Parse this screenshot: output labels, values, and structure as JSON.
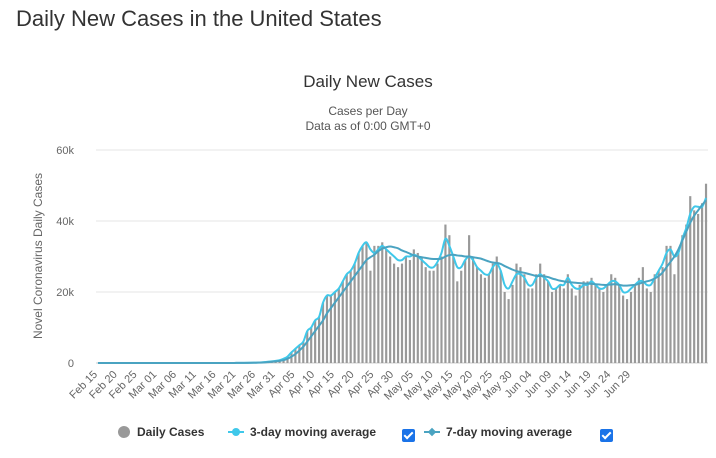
{
  "page": {
    "title": "Daily New Cases in the United States"
  },
  "chart_data": {
    "type": "bar",
    "title": "Daily New Cases",
    "subtitle_lines": [
      "Cases per Day",
      "Data as of 0:00 GMT+0"
    ],
    "ylabel": "Novel Coronavirus Daily Cases",
    "ylim": [
      0,
      60000
    ],
    "y_ticks": [
      0,
      20000,
      40000,
      60000
    ],
    "y_tick_labels": [
      "0",
      "20k",
      "40k",
      "60k"
    ],
    "x_tick_labels": [
      "Feb 15",
      "Feb 20",
      "Feb 25",
      "Mar 01",
      "Mar 06",
      "Mar 11",
      "Mar 16",
      "Mar 21",
      "Mar 26",
      "Mar 31",
      "Apr 05",
      "Apr 10",
      "Apr 15",
      "Apr 20",
      "Apr 25",
      "Apr 30",
      "May 05",
      "May 10",
      "May 15",
      "May 20",
      "May 25",
      "May 30",
      "Jun 04",
      "Jun 09",
      "Jun 14",
      "Jun 19",
      "Jun 24",
      "Jun 29"
    ],
    "x_tick_interval_days": 5,
    "series": [
      {
        "name": "Daily Cases",
        "type": "bar",
        "color": "#999999",
        "values": [
          0,
          0,
          0,
          0,
          0,
          0,
          0,
          0,
          0,
          0,
          0,
          0,
          0,
          0,
          0,
          0,
          0,
          0,
          0,
          0,
          0,
          0,
          0,
          0,
          0,
          0,
          0,
          0,
          0,
          0,
          0,
          0,
          0,
          0,
          10,
          20,
          30,
          50,
          60,
          80,
          110,
          150,
          240,
          350,
          470,
          610,
          800,
          1200,
          1800,
          3000,
          4000,
          5000,
          6000,
          9000,
          10000,
          12000,
          13000,
          17000,
          19000,
          19000,
          20000,
          21000,
          23000,
          25000,
          26000,
          28000,
          31000,
          33000,
          34000,
          26000,
          33000,
          33000,
          34000,
          32000,
          30000,
          28000,
          27000,
          28000,
          30000,
          29000,
          32000,
          31000,
          30000,
          27000,
          26000,
          26000,
          28000,
          30000,
          39000,
          36000,
          30000,
          23000,
          26000,
          29000,
          36000,
          30000,
          27000,
          25000,
          24000,
          25000,
          28000,
          30000,
          26000,
          20000,
          18000,
          22000,
          28000,
          27000,
          25000,
          21000,
          21000,
          25000,
          28000,
          25000,
          23000,
          20000,
          21000,
          22000,
          21000,
          25000,
          21000,
          19000,
          22000,
          23000,
          23000,
          24000,
          22000,
          21000,
          20000,
          22000,
          25000,
          24000,
          22000,
          19000,
          18000,
          20000,
          22000,
          24000,
          27000,
          21000,
          20000,
          25000,
          26000,
          27000,
          33000,
          33000,
          25000,
          31000,
          36000,
          39000,
          47000,
          43000,
          42000,
          45000,
          50500
        ]
      },
      {
        "name": "3-day moving average",
        "type": "line",
        "color": "#3fc8ea",
        "values": [
          0,
          0,
          0,
          0,
          0,
          0,
          0,
          0,
          0,
          0,
          0,
          0,
          0,
          0,
          0,
          0,
          0,
          0,
          0,
          0,
          0,
          0,
          0,
          0,
          0,
          0,
          0,
          0,
          0,
          0,
          0,
          0,
          0,
          0,
          10,
          20,
          30,
          50,
          60,
          80,
          110,
          150,
          240,
          350,
          470,
          610,
          800,
          1200,
          1800,
          3000,
          4000,
          5000,
          6000,
          9000,
          10000,
          12000,
          13000,
          17000,
          19000,
          19000,
          20000,
          21000,
          23000,
          25000,
          26000,
          28000,
          31000,
          33000,
          34000,
          32000,
          31000,
          32000,
          33000,
          32000,
          31000,
          30000,
          29000,
          29000,
          30000,
          30000,
          30500,
          30000,
          29000,
          28000,
          27000,
          27000,
          28500,
          31000,
          35000,
          33000,
          30000,
          27000,
          27000,
          29000,
          30000,
          29000,
          27000,
          26000,
          25000,
          25000,
          27000,
          28000,
          26000,
          22000,
          21000,
          23000,
          25000,
          25000,
          24000,
          22000,
          22000,
          24000,
          25000,
          24000,
          23000,
          21000,
          21000,
          22000,
          22000,
          24000,
          22000,
          21000,
          21000,
          22000,
          22000,
          23000,
          22000,
          21000,
          21000,
          22000,
          23000,
          23000,
          22000,
          20000,
          20000,
          21000,
          22000,
          23000,
          23000,
          22000,
          22000,
          24000,
          26000,
          28000,
          31000,
          32000,
          30000,
          31000,
          35000,
          38000,
          42000,
          44000,
          44000,
          44000,
          46500
        ]
      },
      {
        "name": "7-day moving average",
        "type": "line",
        "color": "#4aa3c1",
        "values": [
          0,
          0,
          0,
          0,
          0,
          0,
          0,
          0,
          0,
          0,
          0,
          0,
          0,
          0,
          0,
          0,
          0,
          0,
          0,
          0,
          0,
          0,
          0,
          0,
          0,
          0,
          0,
          0,
          0,
          0,
          0,
          0,
          0,
          0,
          10,
          20,
          30,
          40,
          50,
          60,
          80,
          110,
          150,
          240,
          350,
          470,
          610,
          800,
          1200,
          1800,
          2500,
          3500,
          4600,
          6000,
          7500,
          9000,
          10500,
          12000,
          14000,
          15500,
          17000,
          18500,
          20000,
          21500,
          23000,
          24500,
          26000,
          27500,
          29000,
          29800,
          30500,
          31500,
          32200,
          32600,
          32800,
          32600,
          32300,
          31700,
          31300,
          30800,
          30300,
          30000,
          29800,
          29600,
          29400,
          29300,
          29300,
          29400,
          30000,
          30400,
          30500,
          30300,
          30200,
          30000,
          30000,
          29800,
          29600,
          29400,
          29000,
          28600,
          28300,
          28200,
          27900,
          27300,
          26800,
          26300,
          25900,
          25600,
          25400,
          25100,
          24800,
          24500,
          24500,
          24400,
          24200,
          23800,
          23500,
          23200,
          23000,
          22800,
          22700,
          22600,
          22500,
          22400,
          22400,
          22300,
          22200,
          22100,
          22000,
          22000,
          22100,
          22200,
          22000,
          21800,
          21800,
          21900,
          22000,
          22300,
          22700,
          23000,
          23300,
          23800,
          24500,
          25500,
          27000,
          28500,
          30000,
          32000,
          34500,
          37000,
          39500,
          41500,
          43000,
          44500,
          45800
        ]
      }
    ]
  },
  "legend": {
    "items": [
      {
        "label": "Daily Cases",
        "color": "#999999"
      },
      {
        "label": "3-day moving average",
        "color": "#3fc8ea"
      },
      {
        "label": "7-day moving average",
        "color": "#4aa3c1"
      }
    ]
  }
}
